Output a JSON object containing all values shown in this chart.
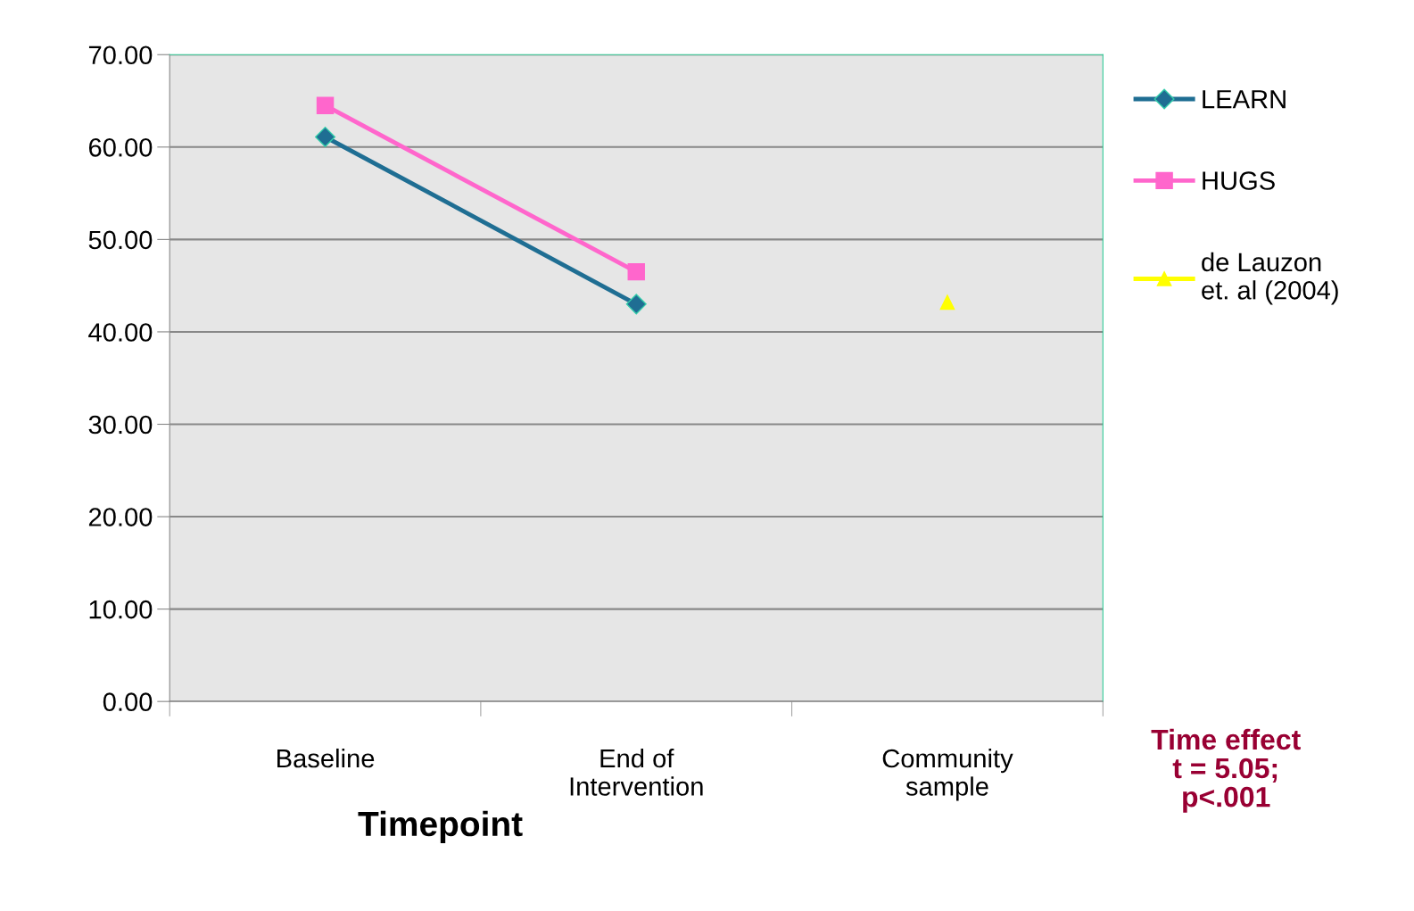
{
  "chart_data": {
    "type": "line",
    "xlabel": "Timepoint",
    "categories": [
      "Baseline",
      "End of\nIntervention",
      "Community\nsample"
    ],
    "series": [
      {
        "name": "LEARN",
        "color": "#1f6e93",
        "marker": "diamond",
        "values": [
          61.1,
          43.0,
          null
        ]
      },
      {
        "name": "HUGS",
        "color": "#ff66cc",
        "marker": "square",
        "values": [
          64.5,
          46.5,
          null
        ]
      },
      {
        "name": "de Lauzon\net. al (2004)",
        "color": "#ffff00",
        "marker": "triangle",
        "values": [
          null,
          null,
          43.2
        ]
      }
    ],
    "ylim": [
      0,
      70
    ],
    "yticks": [
      {
        "value": 0,
        "label": "0.00"
      },
      {
        "value": 10,
        "label": "10.00"
      },
      {
        "value": 20,
        "label": "20.00"
      },
      {
        "value": 30,
        "label": "30.00"
      },
      {
        "value": 40,
        "label": "40.00"
      },
      {
        "value": 50,
        "label": "50.00"
      },
      {
        "value": 60,
        "label": "60.00"
      },
      {
        "value": 70,
        "label": "70.00"
      }
    ],
    "grid": "y",
    "legend": "right",
    "annotations": [
      "Time effect\nt = 5.05;\np<.001"
    ]
  }
}
